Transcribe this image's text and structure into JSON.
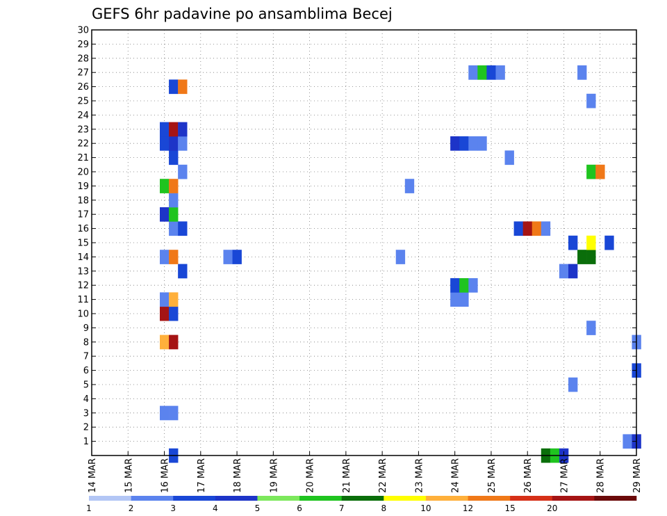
{
  "chart_data": {
    "type": "heatmap",
    "title": "GEFS 6hr padavine po ansamblima Becej",
    "x_dates": [
      "14 MAR",
      "15 MAR",
      "16 MAR",
      "17 MAR",
      "18 MAR",
      "19 MAR",
      "20 MAR",
      "21 MAR",
      "22 MAR",
      "23 MAR",
      "24 MAR",
      "25 MAR",
      "26 MAR",
      "27 MAR",
      "28 MAR",
      "29 MAR"
    ],
    "x_range_days": [
      0,
      15
    ],
    "y_range": [
      0,
      30
    ],
    "y_ticks": [
      1,
      2,
      3,
      4,
      5,
      6,
      7,
      8,
      9,
      10,
      11,
      12,
      13,
      14,
      15,
      16,
      17,
      18,
      19,
      20,
      21,
      22,
      23,
      24,
      25,
      26,
      27,
      28,
      29,
      30
    ],
    "grid": true,
    "colorbar": {
      "labels": [
        "1",
        "2",
        "3",
        "4",
        "5",
        "6",
        "7",
        "8",
        "10",
        "12",
        "15",
        "20"
      ],
      "colors": [
        "#b3c6f5",
        "#5b83ee",
        "#1947d6",
        "#1d34c8",
        "#7ce85c",
        "#1fc41f",
        "#0a6e0a",
        "#ffff00",
        "#ffb03b",
        "#f07818",
        "#d63018",
        "#a51414",
        "#6b0a0a"
      ]
    },
    "cells": [
      {
        "t": 2.25,
        "m": 0,
        "c": 2
      },
      {
        "t": 12.5,
        "m": 0,
        "c": 6
      },
      {
        "t": 12.75,
        "m": 0,
        "c": 5
      },
      {
        "t": 13.0,
        "m": 0,
        "c": 3
      },
      {
        "t": 14.75,
        "m": 1,
        "c": 1
      },
      {
        "t": 15.0,
        "m": 1,
        "c": 3
      },
      {
        "t": 2.0,
        "m": 3,
        "c": 1
      },
      {
        "t": 2.25,
        "m": 3,
        "c": 1
      },
      {
        "t": 13.25,
        "m": 5,
        "c": 1
      },
      {
        "t": 15.0,
        "m": 6,
        "c": 2
      },
      {
        "t": 15.0,
        "m": 8,
        "c": 1
      },
      {
        "t": 2.0,
        "m": 8,
        "c": 8
      },
      {
        "t": 2.25,
        "m": 8,
        "c": 11
      },
      {
        "t": 13.75,
        "m": 9,
        "c": 1
      },
      {
        "t": 2.0,
        "m": 10,
        "c": 11
      },
      {
        "t": 2.25,
        "m": 10,
        "c": 2
      },
      {
        "t": 2.0,
        "m": 11,
        "c": 1
      },
      {
        "t": 2.25,
        "m": 11,
        "c": 8
      },
      {
        "t": 10.0,
        "m": 11,
        "c": 1
      },
      {
        "t": 10.25,
        "m": 11,
        "c": 1
      },
      {
        "t": 10.0,
        "m": 12,
        "c": 2
      },
      {
        "t": 10.25,
        "m": 12,
        "c": 5
      },
      {
        "t": 10.5,
        "m": 12,
        "c": 1
      },
      {
        "t": 2.5,
        "m": 13,
        "c": 2
      },
      {
        "t": 13.0,
        "m": 13,
        "c": 1
      },
      {
        "t": 13.25,
        "m": 13,
        "c": 3
      },
      {
        "t": 2.0,
        "m": 14,
        "c": 1
      },
      {
        "t": 2.25,
        "m": 14,
        "c": 9
      },
      {
        "t": 3.75,
        "m": 14,
        "c": 1
      },
      {
        "t": 4.0,
        "m": 14,
        "c": 2
      },
      {
        "t": 8.5,
        "m": 14,
        "c": 1
      },
      {
        "t": 13.5,
        "m": 14,
        "c": 6
      },
      {
        "t": 13.75,
        "m": 14,
        "c": 6
      },
      {
        "t": 13.25,
        "m": 15,
        "c": 2
      },
      {
        "t": 13.75,
        "m": 15,
        "c": 7
      },
      {
        "t": 14.25,
        "m": 15,
        "c": 2
      },
      {
        "t": 11.75,
        "m": 16,
        "c": 2
      },
      {
        "t": 12.0,
        "m": 16,
        "c": 11
      },
      {
        "t": 12.25,
        "m": 16,
        "c": 9
      },
      {
        "t": 12.5,
        "m": 16,
        "c": 1
      },
      {
        "t": 2.25,
        "m": 16,
        "c": 1
      },
      {
        "t": 2.5,
        "m": 16,
        "c": 2
      },
      {
        "t": 2.0,
        "m": 17,
        "c": 3
      },
      {
        "t": 2.25,
        "m": 17,
        "c": 5
      },
      {
        "t": 2.25,
        "m": 18,
        "c": 1
      },
      {
        "t": 2.0,
        "m": 19,
        "c": 5
      },
      {
        "t": 2.25,
        "m": 19,
        "c": 9
      },
      {
        "t": 8.75,
        "m": 19,
        "c": 1
      },
      {
        "t": 2.5,
        "m": 20,
        "c": 1
      },
      {
        "t": 13.75,
        "m": 20,
        "c": 5
      },
      {
        "t": 14.0,
        "m": 20,
        "c": 9
      },
      {
        "t": 2.25,
        "m": 21,
        "c": 2
      },
      {
        "t": 11.5,
        "m": 21,
        "c": 1
      },
      {
        "t": 2.0,
        "m": 22,
        "c": 2
      },
      {
        "t": 2.25,
        "m": 22,
        "c": 3
      },
      {
        "t": 2.5,
        "m": 22,
        "c": 1
      },
      {
        "t": 10.0,
        "m": 22,
        "c": 3
      },
      {
        "t": 10.25,
        "m": 22,
        "c": 2
      },
      {
        "t": 10.5,
        "m": 22,
        "c": 1
      },
      {
        "t": 10.75,
        "m": 22,
        "c": 1
      },
      {
        "t": 2.0,
        "m": 23,
        "c": 2
      },
      {
        "t": 2.25,
        "m": 23,
        "c": 11
      },
      {
        "t": 2.5,
        "m": 23,
        "c": 3
      },
      {
        "t": 13.75,
        "m": 25,
        "c": 1
      },
      {
        "t": 2.25,
        "m": 26,
        "c": 2
      },
      {
        "t": 2.5,
        "m": 26,
        "c": 9
      },
      {
        "t": 10.5,
        "m": 27,
        "c": 1
      },
      {
        "t": 10.75,
        "m": 27,
        "c": 5
      },
      {
        "t": 11.0,
        "m": 27,
        "c": 2
      },
      {
        "t": 11.25,
        "m": 27,
        "c": 1
      },
      {
        "t": 13.5,
        "m": 27,
        "c": 1
      }
    ]
  }
}
